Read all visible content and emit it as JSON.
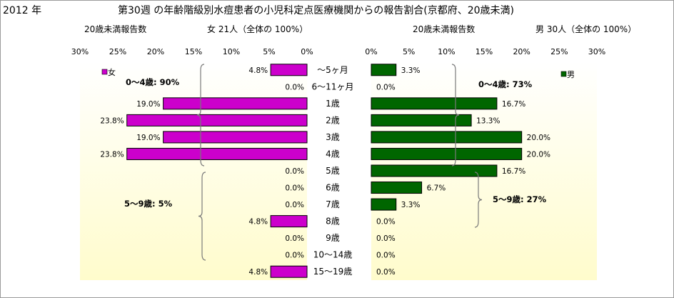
{
  "header": {
    "year": "2012 年",
    "title": "第30週 の年齢階級別水痘患者の小児科定点医療機関からの報告割合(京都府、20歳未満)"
  },
  "colors": {
    "female": "#cc00cc",
    "male": "#006600",
    "bg_top": "#ffffff",
    "bg_bottom": "#fffccc"
  },
  "chart_data": [
    {
      "type": "bar",
      "orientation": "horizontal",
      "direction": "right-to-left",
      "subtitle_left": "20歳未満報告数",
      "subtitle_right": "女 21人（全体の 100%）",
      "legend": "女",
      "legend_placement": "top-left",
      "categories": [
        "～5ヶ月",
        "6～11ヶ月",
        "1歳",
        "2歳",
        "3歳",
        "4歳",
        "5歳",
        "6歳",
        "7歳",
        "8歳",
        "9歳",
        "10～14歳",
        "15～19歳"
      ],
      "values": [
        4.8,
        0.0,
        19.0,
        23.8,
        19.0,
        23.8,
        0.0,
        0.0,
        0.0,
        4.8,
        0.0,
        0.0,
        4.8
      ],
      "value_labels": [
        "4.8%",
        "0.0%",
        "19.0%",
        "23.8%",
        "19.0%",
        "23.8%",
        "0.0%",
        "0.0%",
        "0.0%",
        "4.8%",
        "0.0%",
        "0.0%",
        "4.8%"
      ],
      "xlim": [
        0,
        30
      ],
      "xticks": [
        "0%",
        "5%",
        "10%",
        "15%",
        "20%",
        "25%",
        "30%"
      ],
      "annotations": [
        "0～4歳: 90%",
        "5～9歳: 5%"
      ]
    },
    {
      "type": "bar",
      "orientation": "horizontal",
      "direction": "left-to-right",
      "subtitle_left": "20歳未満報告数",
      "subtitle_right": "男 30人（全体の 100%）",
      "legend": "男",
      "legend_placement": "top-right",
      "categories": [
        "～5ヶ月",
        "6～11ヶ月",
        "1歳",
        "2歳",
        "3歳",
        "4歳",
        "5歳",
        "6歳",
        "7歳",
        "8歳",
        "9歳",
        "10～14歳",
        "15～19歳"
      ],
      "values": [
        3.3,
        0.0,
        16.7,
        13.3,
        20.0,
        20.0,
        16.7,
        6.7,
        3.3,
        0.0,
        0.0,
        0.0,
        0.0
      ],
      "value_labels": [
        "3.3%",
        "0.0%",
        "16.7%",
        "13.3%",
        "20.0%",
        "20.0%",
        "16.7%",
        "6.7%",
        "3.3%",
        "0.0%",
        "0.0%",
        "0.0%",
        "0.0%"
      ],
      "xlim": [
        0,
        30
      ],
      "xticks": [
        "0%",
        "5%",
        "10%",
        "15%",
        "20%",
        "25%",
        "30%"
      ],
      "annotations": [
        "0～4歳: 73%",
        "5～9歳: 27%"
      ]
    }
  ]
}
